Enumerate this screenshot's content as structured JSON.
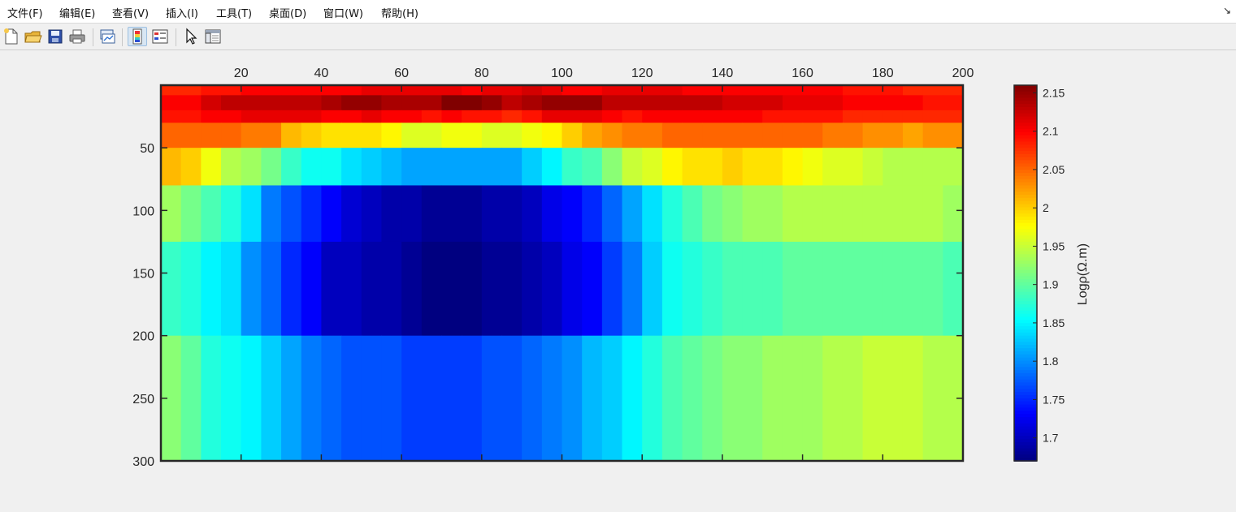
{
  "menu": {
    "file": "文件(F)",
    "edit": "编辑(E)",
    "view": "查看(V)",
    "insert": "插入(I)",
    "tools": "工具(T)",
    "desktop": "桌面(D)",
    "window": "窗口(W)",
    "help": "帮助(H)",
    "undock_glyph": "↘"
  },
  "toolbar": {
    "buttons": [
      "new-figure-icon",
      "open-file-icon",
      "save-icon",
      "print-icon",
      "link-plot-icon",
      "insert-colorbar-icon",
      "insert-legend-icon",
      "pointer-icon",
      "property-inspector-icon"
    ],
    "active": "insert-colorbar-icon"
  },
  "chart_data": {
    "type": "heatmap",
    "title": "",
    "xlabel": "",
    "ylabel": "",
    "x_axis_location": "top",
    "y_direction": "reverse",
    "xlim": [
      0,
      200
    ],
    "ylim": [
      0,
      300
    ],
    "xticks": [
      20,
      40,
      60,
      80,
      100,
      120,
      140,
      160,
      180,
      200
    ],
    "yticks": [
      50,
      100,
      150,
      200,
      250,
      300
    ],
    "x_columns": 40,
    "column_width": 5,
    "row_bounds": [
      0,
      8,
      20,
      30,
      50,
      80,
      125,
      200,
      300
    ],
    "rows_values": [
      [
        2.08,
        2.08,
        2.09,
        2.09,
        2.1,
        2.1,
        2.1,
        2.1,
        2.1,
        2.1,
        2.11,
        2.11,
        2.11,
        2.11,
        2.11,
        2.1,
        2.11,
        2.11,
        2.12,
        2.11,
        2.1,
        2.1,
        2.11,
        2.11,
        2.11,
        2.11,
        2.1,
        2.1,
        2.1,
        2.1,
        2.1,
        2.1,
        2.1,
        2.1,
        2.09,
        2.09,
        2.09,
        2.08,
        2.08,
        2.08
      ],
      [
        2.1,
        2.1,
        2.12,
        2.13,
        2.13,
        2.13,
        2.13,
        2.13,
        2.14,
        2.15,
        2.15,
        2.14,
        2.14,
        2.14,
        2.16,
        2.16,
        2.15,
        2.13,
        2.14,
        2.15,
        2.15,
        2.15,
        2.13,
        2.13,
        2.13,
        2.13,
        2.13,
        2.13,
        2.12,
        2.12,
        2.12,
        2.11,
        2.11,
        2.11,
        2.1,
        2.1,
        2.1,
        2.1,
        2.09,
        2.09
      ],
      [
        2.09,
        2.09,
        2.1,
        2.1,
        2.11,
        2.11,
        2.11,
        2.11,
        2.1,
        2.1,
        2.11,
        2.1,
        2.1,
        2.09,
        2.1,
        2.09,
        2.09,
        2.08,
        2.09,
        2.11,
        2.11,
        2.11,
        2.1,
        2.09,
        2.1,
        2.1,
        2.1,
        2.1,
        2.1,
        2.1,
        2.09,
        2.09,
        2.09,
        2.09,
        2.08,
        2.08,
        2.08,
        2.08,
        2.08,
        2.08
      ],
      [
        2.05,
        2.05,
        2.05,
        2.05,
        2.04,
        2.04,
        2.01,
        2.0,
        1.99,
        1.99,
        1.99,
        1.98,
        1.96,
        1.96,
        1.97,
        1.97,
        1.96,
        1.96,
        1.97,
        1.98,
        2.0,
        2.02,
        2.03,
        2.04,
        2.04,
        2.05,
        2.05,
        2.05,
        2.05,
        2.05,
        2.05,
        2.05,
        2.05,
        2.04,
        2.04,
        2.03,
        2.03,
        2.02,
        2.03,
        2.03
      ],
      [
        2.01,
        2.0,
        1.97,
        1.94,
        1.93,
        1.91,
        1.88,
        1.86,
        1.86,
        1.84,
        1.83,
        1.82,
        1.81,
        1.81,
        1.81,
        1.81,
        1.81,
        1.81,
        1.83,
        1.85,
        1.88,
        1.89,
        1.92,
        1.95,
        1.96,
        1.98,
        1.99,
        1.99,
        2.0,
        1.99,
        1.99,
        1.98,
        1.97,
        1.96,
        1.96,
        1.95,
        1.94,
        1.94,
        1.94,
        1.94
      ],
      [
        1.93,
        1.91,
        1.89,
        1.87,
        1.84,
        1.79,
        1.77,
        1.75,
        1.73,
        1.71,
        1.7,
        1.69,
        1.69,
        1.68,
        1.68,
        1.68,
        1.69,
        1.69,
        1.7,
        1.72,
        1.73,
        1.75,
        1.78,
        1.81,
        1.84,
        1.87,
        1.89,
        1.91,
        1.92,
        1.93,
        1.93,
        1.94,
        1.94,
        1.94,
        1.94,
        1.94,
        1.94,
        1.94,
        1.94,
        1.93
      ],
      [
        1.88,
        1.87,
        1.85,
        1.84,
        1.8,
        1.78,
        1.75,
        1.73,
        1.7,
        1.7,
        1.69,
        1.69,
        1.68,
        1.67,
        1.67,
        1.67,
        1.68,
        1.68,
        1.69,
        1.7,
        1.72,
        1.73,
        1.76,
        1.79,
        1.83,
        1.86,
        1.87,
        1.88,
        1.89,
        1.89,
        1.89,
        1.9,
        1.9,
        1.9,
        1.9,
        1.9,
        1.9,
        1.9,
        1.9,
        1.89
      ],
      [
        1.92,
        1.9,
        1.87,
        1.86,
        1.85,
        1.83,
        1.81,
        1.79,
        1.78,
        1.77,
        1.77,
        1.77,
        1.76,
        1.76,
        1.76,
        1.76,
        1.77,
        1.77,
        1.78,
        1.79,
        1.8,
        1.82,
        1.83,
        1.85,
        1.87,
        1.89,
        1.9,
        1.91,
        1.92,
        1.92,
        1.93,
        1.93,
        1.93,
        1.94,
        1.94,
        1.95,
        1.95,
        1.95,
        1.94,
        1.94
      ]
    ],
    "colorbar": {
      "label": "Logρ(Ω.m)",
      "colormap": "jet",
      "clim": [
        1.67,
        2.16
      ],
      "ticks": [
        "1.7",
        "1.75",
        "1.8",
        "1.85",
        "1.9",
        "1.95",
        "2",
        "2.05",
        "2.1",
        "2.15"
      ],
      "location": "right"
    }
  }
}
